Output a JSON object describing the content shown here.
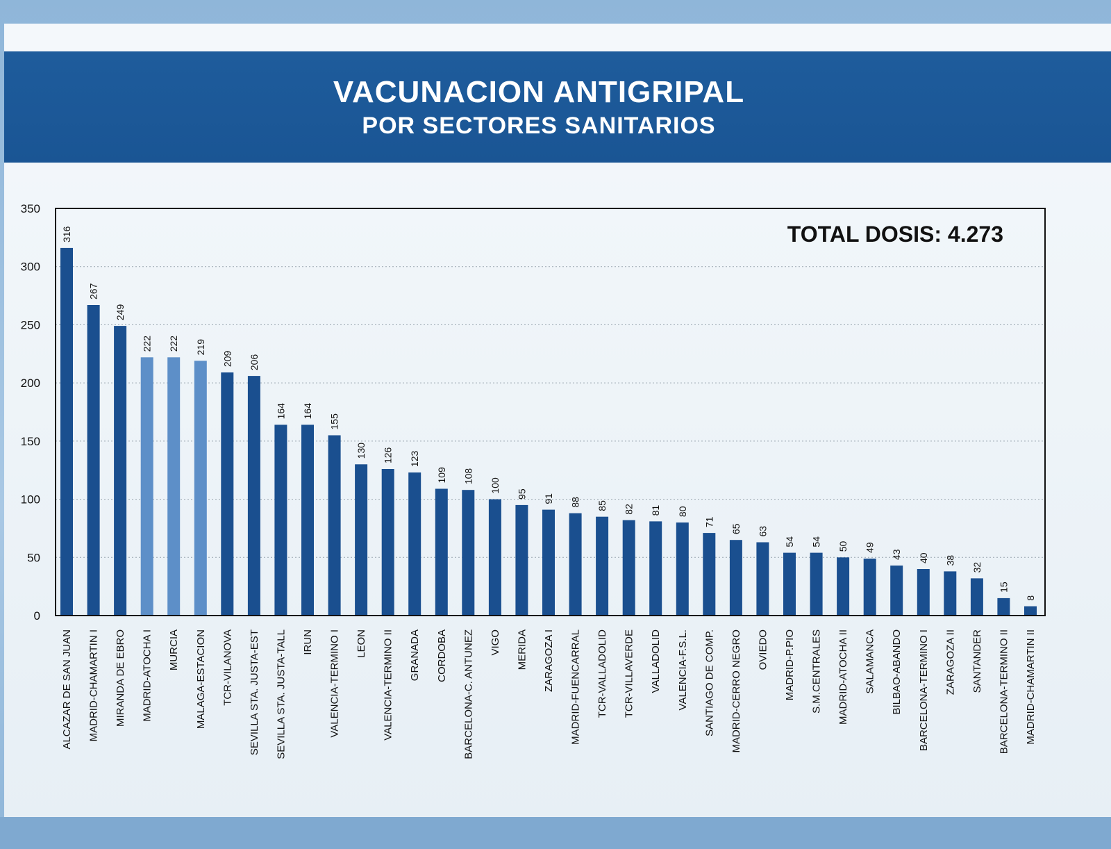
{
  "header": {
    "title": "VACUNACION ANTIGRIPAL",
    "subtitle": "POR SECTORES SANITARIOS"
  },
  "colors": {
    "bar_dark": "#1a4f8f",
    "bar_light": "#5d8fc8",
    "band": "#1e5c9c"
  },
  "chart_data": {
    "type": "bar",
    "title": "VACUNACION ANTIGRIPAL POR SECTORES SANITARIOS",
    "annotation": "TOTAL DOSIS: 4.273",
    "xlabel": "",
    "ylabel": "",
    "ylim": [
      0,
      350
    ],
    "yticks": [
      0,
      50,
      100,
      150,
      200,
      250,
      300,
      350
    ],
    "grid": true,
    "categories": [
      "ALCAZAR DE SAN JUAN",
      "MADRID-CHAMARTIN I",
      "MIRANDA DE EBRO",
      "MADRID-ATOCHA I",
      "MURCIA",
      "MALAGA-ESTACION",
      "TCR-VILANOVA",
      "SEVILLA STA. JUSTA-EST",
      "SEVILLA STA. JUSTA-TALL",
      "IRUN",
      "VALENCIA-TERMINO I",
      "LEON",
      "VALENCIA-TERMINO II",
      "GRANADA",
      "CORDOBA",
      "BARCELONA-C. ANTUNEZ",
      "VIGO",
      "MERIDA",
      "ZARAGOZA I",
      "MADRID-FUENCARRAL",
      "TCR-VALLADOLID",
      "TCR-VILLAVERDE",
      "VALLADOLID",
      "VALENCIA-F.S.L.",
      "SANTIAGO DE COMP.",
      "MADRID-CERRO NEGRO",
      "OVIEDO",
      "MADRID-P.PIO",
      "S.M.CENTRALES",
      "MADRID-ATOCHA II",
      "SALAMANCA",
      "BILBAO-ABANDO",
      "BARCELONA-TERMINO I",
      "ZARAGOZA II",
      "SANTANDER",
      "BARCELONA-TERMINO II",
      "MADRID-CHAMARTIN II"
    ],
    "values": [
      316,
      267,
      249,
      222,
      222,
      219,
      209,
      206,
      164,
      164,
      155,
      130,
      126,
      123,
      109,
      108,
      100,
      95,
      91,
      88,
      85,
      82,
      81,
      80,
      71,
      65,
      63,
      54,
      54,
      50,
      49,
      43,
      40,
      38,
      32,
      15,
      8
    ],
    "value_labels": [
      "316",
      "267",
      "249",
      "222",
      "222",
      "219",
      "209",
      "206",
      "164",
      "164",
      "155",
      "130",
      "126",
      "123",
      "109",
      "108",
      "100",
      "95",
      "91",
      "88",
      "85",
      "82",
      "81",
      "80",
      "71",
      "65",
      "63",
      "54",
      "54",
      "50",
      "49",
      "43",
      "40",
      "38",
      "32",
      "15",
      "8"
    ]
  }
}
